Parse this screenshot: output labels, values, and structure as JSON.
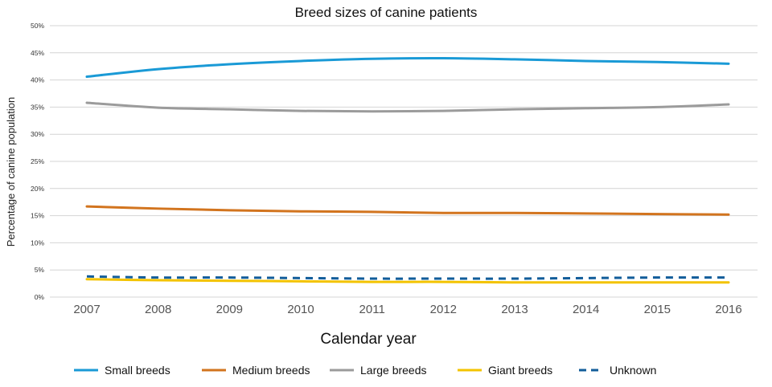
{
  "chart_data": {
    "type": "line",
    "title": "Breed sizes of canine patients",
    "xlabel": "Calendar year",
    "ylabel": "Percentage of canine population",
    "x": [
      "2007",
      "2008",
      "2009",
      "2010",
      "2011",
      "2012",
      "2013",
      "2014",
      "2015",
      "2016"
    ],
    "ylim": [
      0,
      50
    ],
    "yticks": [
      "0%",
      "5%",
      "10%",
      "15%",
      "20%",
      "25%",
      "30%",
      "35%",
      "40%",
      "45%",
      "50%"
    ],
    "grid": true,
    "legend_position": "bottom",
    "series": [
      {
        "name": "Small breeds",
        "color": "#1a9ad6",
        "style": "solid",
        "values": [
          40.6,
          42.0,
          42.9,
          43.5,
          43.9,
          44.0,
          43.8,
          43.5,
          43.3,
          43.0
        ]
      },
      {
        "name": "Medium breeds",
        "color": "#d2741e",
        "style": "solid",
        "values": [
          16.7,
          16.3,
          16.0,
          15.8,
          15.7,
          15.5,
          15.5,
          15.4,
          15.3,
          15.2
        ]
      },
      {
        "name": "Large breeds",
        "color": "#9b9b9b",
        "style": "solid",
        "values": [
          35.8,
          34.9,
          34.6,
          34.3,
          34.2,
          34.3,
          34.6,
          34.8,
          35.0,
          35.5
        ]
      },
      {
        "name": "Giant breeds",
        "color": "#f3c300",
        "style": "solid",
        "values": [
          3.3,
          3.1,
          3.0,
          2.9,
          2.8,
          2.8,
          2.7,
          2.7,
          2.7,
          2.7
        ]
      },
      {
        "name": "Unknown",
        "color": "#125d9a",
        "style": "dashed",
        "values": [
          3.8,
          3.6,
          3.6,
          3.5,
          3.4,
          3.4,
          3.4,
          3.5,
          3.6,
          3.6
        ]
      }
    ]
  }
}
